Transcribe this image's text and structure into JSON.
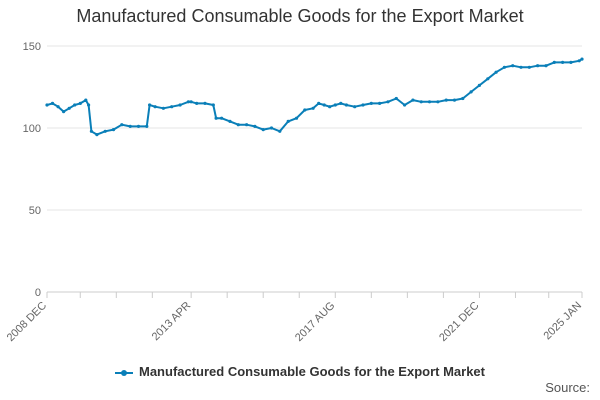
{
  "chart_data": {
    "type": "line",
    "title": "Manufactured Consumable Goods for the Export Market",
    "xlabel": "",
    "ylabel": "",
    "ylim": [
      0,
      150
    ],
    "yticks": [
      "0",
      "50",
      "100",
      "150"
    ],
    "xticks": [
      "2008 DEC",
      "2013 APR",
      "2017 AUG",
      "2021 DEC",
      "2025 JAN"
    ],
    "grid": true,
    "legend_position": "bottom",
    "line_color": "#0a7fb8",
    "series": [
      {
        "name": "Manufactured Consumable Goods for the Export Market",
        "x": [
          "2008-12",
          "2009-02",
          "2009-04",
          "2009-06",
          "2009-08",
          "2009-10",
          "2009-12",
          "2010-02",
          "2010-03",
          "2010-04",
          "2010-06",
          "2010-09",
          "2010-12",
          "2011-03",
          "2011-06",
          "2011-09",
          "2011-12",
          "2012-01",
          "2012-03",
          "2012-06",
          "2012-09",
          "2012-12",
          "2013-03",
          "2013-04",
          "2013-06",
          "2013-09",
          "2013-12",
          "2014-01",
          "2014-03",
          "2014-06",
          "2014-09",
          "2014-12",
          "2015-03",
          "2015-06",
          "2015-09",
          "2015-12",
          "2016-03",
          "2016-06",
          "2016-09",
          "2016-12",
          "2017-02",
          "2017-04",
          "2017-06",
          "2017-08",
          "2017-10",
          "2017-12",
          "2018-03",
          "2018-06",
          "2018-09",
          "2018-12",
          "2019-03",
          "2019-06",
          "2019-09",
          "2019-12",
          "2020-03",
          "2020-06",
          "2020-09",
          "2020-12",
          "2021-03",
          "2021-06",
          "2021-09",
          "2021-12",
          "2022-03",
          "2022-06",
          "2022-09",
          "2022-12",
          "2023-03",
          "2023-06",
          "2023-09",
          "2023-12",
          "2024-03",
          "2024-06",
          "2024-09",
          "2024-12",
          "2025-01"
        ],
        "values": [
          114,
          115,
          113,
          110,
          112,
          114,
          115,
          117,
          114,
          98,
          96,
          98,
          99,
          102,
          101,
          101,
          101,
          114,
          113,
          112,
          113,
          114,
          116,
          116,
          115,
          115,
          114,
          106,
          106,
          104,
          102,
          102,
          101,
          99,
          100,
          98,
          104,
          106,
          111,
          112,
          115,
          114,
          113,
          114,
          115,
          114,
          113,
          114,
          115,
          115,
          116,
          118,
          114,
          117,
          116,
          116,
          116,
          117,
          117,
          118,
          122,
          126,
          130,
          134,
          137,
          138,
          137,
          137,
          138,
          138,
          140,
          140,
          140,
          141,
          142
        ]
      }
    ]
  },
  "legend_label": "Manufactured Consumable Goods for the Export Market",
  "source_label": "Source:"
}
